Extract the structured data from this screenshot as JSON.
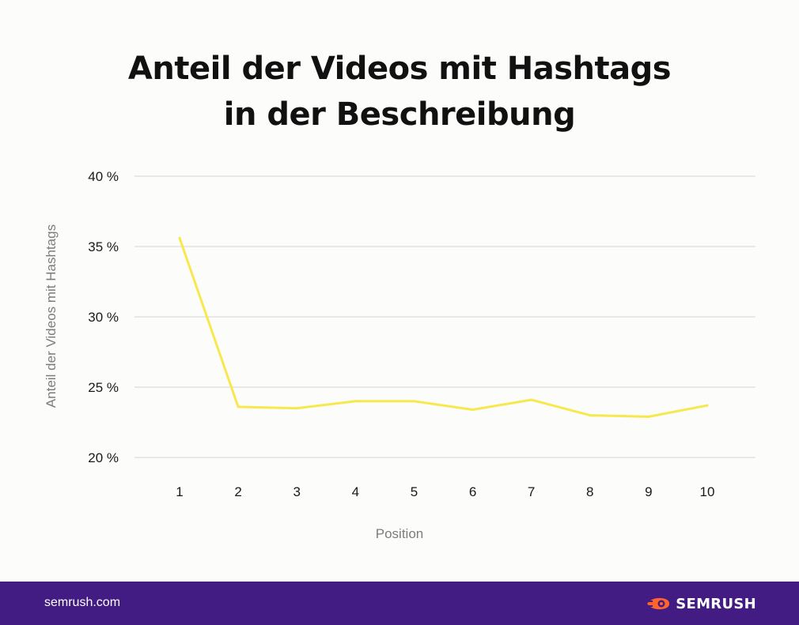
{
  "title": {
    "line1": "Anteil der Videos mit Hashtags",
    "line2": "in der Beschreibung"
  },
  "footer": {
    "url": "semrush.com",
    "brand": "SEMRUSH"
  },
  "colors": {
    "line": "#f7e84e",
    "grid": "#dcdcdc",
    "footer_bg": "#421c82",
    "logo": "#ff642d"
  },
  "chart_data": {
    "type": "line",
    "title": "Anteil der Videos mit Hashtags in der Beschreibung",
    "xlabel": "Position",
    "ylabel": "Anteil der Videos mit Hashtags",
    "x": [
      "1",
      "2",
      "3",
      "4",
      "5",
      "6",
      "7",
      "8",
      "9",
      "10"
    ],
    "series": [
      {
        "values": [
          35.6,
          23.6,
          23.5,
          24.0,
          24.0,
          23.4,
          24.1,
          23.0,
          22.9,
          23.7
        ]
      }
    ],
    "ylim": [
      20,
      40
    ],
    "yticks": [
      20,
      25,
      30,
      35,
      40
    ],
    "ytick_labels": [
      "20 %",
      "25 %",
      "30 %",
      "35 %",
      "40 %"
    ],
    "grid": true,
    "legend": "none"
  }
}
